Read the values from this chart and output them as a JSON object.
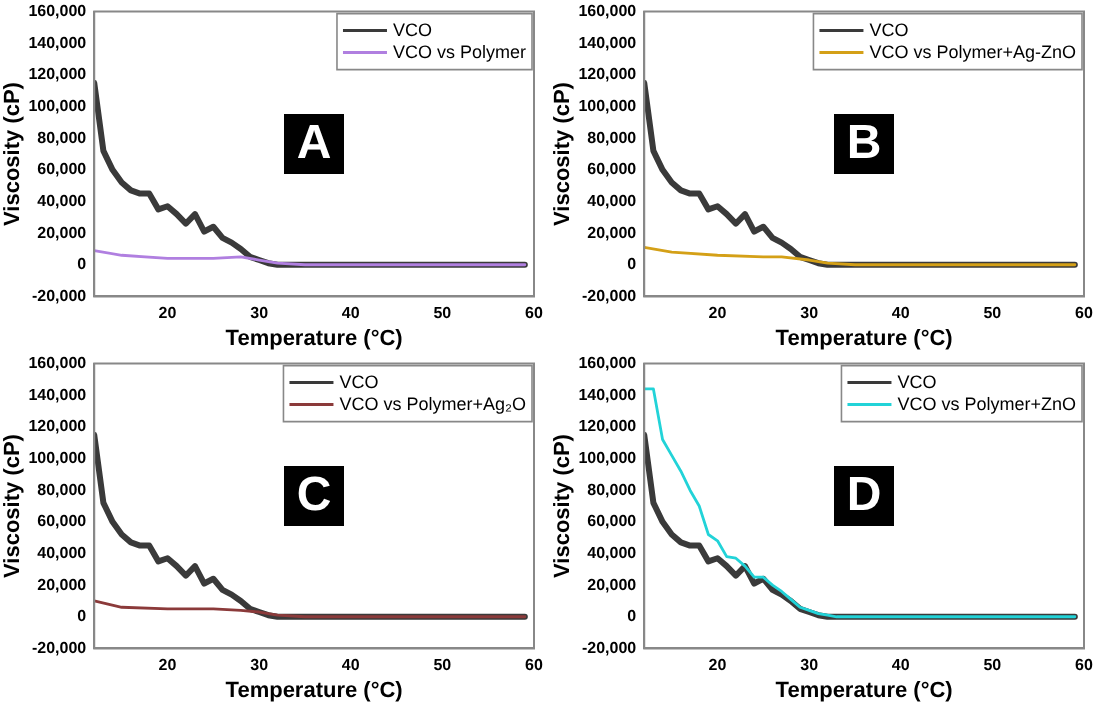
{
  "chart_data": [
    {
      "type": "line",
      "xlabel": "Temperature (°C)",
      "ylabel": "Viscosity (cP)",
      "annotations": [
        "A"
      ],
      "legend": "top right",
      "grid": false,
      "marker": "none",
      "line_style": "solid",
      "xlim": [
        12,
        60
      ],
      "xticks": [
        20,
        30,
        40,
        50,
        60
      ],
      "ylim": [
        -20000,
        160000
      ],
      "yticks": [
        {
          "value": -20000,
          "label": "-20,000"
        },
        {
          "value": 0,
          "label": "0"
        },
        {
          "value": 20000,
          "label": "20,000"
        },
        {
          "value": 40000,
          "label": "40,000"
        },
        {
          "value": 60000,
          "label": "60,000"
        },
        {
          "value": 80000,
          "label": "80,000"
        },
        {
          "value": 100000,
          "label": "100,000"
        },
        {
          "value": 120000,
          "label": "120,000"
        },
        {
          "value": 140000,
          "label": "140,000"
        },
        {
          "value": 160000,
          "label": "160,000"
        }
      ],
      "series": [
        {
          "name": "VCO",
          "color": "#3a3a3a",
          "x": [
            12,
            13,
            14,
            15,
            16,
            17,
            18,
            19,
            20,
            21,
            22,
            23,
            24,
            25,
            26,
            27,
            28,
            29,
            30,
            31,
            32,
            33,
            35,
            40,
            50,
            59
          ],
          "values": [
            115000,
            72000,
            60000,
            52000,
            47000,
            45000,
            45000,
            35000,
            37000,
            32000,
            26000,
            32000,
            21000,
            24000,
            17000,
            14000,
            10000,
            5000,
            3000,
            1000,
            0,
            0,
            0,
            0,
            0,
            0
          ]
        },
        {
          "name": "VCO vs Polymer",
          "color": "#b07fe0",
          "x": [
            12,
            15,
            20,
            25,
            28,
            30,
            32,
            35,
            40,
            50,
            59
          ],
          "values": [
            9000,
            6000,
            4000,
            4000,
            5000,
            3000,
            1000,
            0,
            0,
            0,
            0
          ]
        }
      ]
    },
    {
      "type": "line",
      "xlabel": "Temperature (°C)",
      "ylabel": "Viscosity (cP)",
      "annotations": [
        "B"
      ],
      "legend": "top right",
      "grid": false,
      "marker": "none",
      "line_style": "solid",
      "xlim": [
        12,
        60
      ],
      "xticks": [
        20,
        30,
        40,
        50,
        60
      ],
      "ylim": [
        -20000,
        160000
      ],
      "yticks": [
        {
          "value": -20000,
          "label": "-20,000"
        },
        {
          "value": 0,
          "label": "0"
        },
        {
          "value": 20000,
          "label": "20,000"
        },
        {
          "value": 40000,
          "label": "40,000"
        },
        {
          "value": 60000,
          "label": "60,000"
        },
        {
          "value": 80000,
          "label": "80,000"
        },
        {
          "value": 100000,
          "label": "100,000"
        },
        {
          "value": 120000,
          "label": "120,000"
        },
        {
          "value": 140000,
          "label": "140,000"
        },
        {
          "value": 160000,
          "label": "160,000"
        }
      ],
      "series": [
        {
          "name": "VCO",
          "color": "#3a3a3a",
          "x": [
            12,
            13,
            14,
            15,
            16,
            17,
            18,
            19,
            20,
            21,
            22,
            23,
            24,
            25,
            26,
            27,
            28,
            29,
            30,
            31,
            32,
            33,
            35,
            40,
            50,
            59
          ],
          "values": [
            115000,
            72000,
            60000,
            52000,
            47000,
            45000,
            45000,
            35000,
            37000,
            32000,
            26000,
            32000,
            21000,
            24000,
            17000,
            14000,
            10000,
            5000,
            3000,
            1000,
            0,
            0,
            0,
            0,
            0,
            0
          ]
        },
        {
          "name": "VCO vs Polymer+Ag-ZnO",
          "color": "#d4a017",
          "x": [
            12,
            15,
            20,
            25,
            27,
            30,
            32,
            35,
            40,
            50,
            59
          ],
          "values": [
            11000,
            8000,
            6000,
            5000,
            5000,
            3000,
            1000,
            0,
            0,
            0,
            0
          ]
        }
      ]
    },
    {
      "type": "line",
      "xlabel": "Temperature (°C)",
      "ylabel": "Viscosity (cP)",
      "annotations": [
        "C"
      ],
      "legend": "top right",
      "grid": false,
      "marker": "none",
      "line_style": "solid",
      "xlim": [
        12,
        60
      ],
      "xticks": [
        20,
        30,
        40,
        50,
        60
      ],
      "ylim": [
        -20000,
        160000
      ],
      "yticks": [
        {
          "value": -20000,
          "label": "-20,000"
        },
        {
          "value": 0,
          "label": "0"
        },
        {
          "value": 20000,
          "label": "20,000"
        },
        {
          "value": 40000,
          "label": "40,000"
        },
        {
          "value": 60000,
          "label": "60,000"
        },
        {
          "value": 80000,
          "label": "80,000"
        },
        {
          "value": 100000,
          "label": "100,000"
        },
        {
          "value": 120000,
          "label": "120,000"
        },
        {
          "value": 140000,
          "label": "140,000"
        },
        {
          "value": 160000,
          "label": "160,000"
        }
      ],
      "series": [
        {
          "name": "VCO",
          "color": "#3a3a3a",
          "x": [
            12,
            13,
            14,
            15,
            16,
            17,
            18,
            19,
            20,
            21,
            22,
            23,
            24,
            25,
            26,
            27,
            28,
            29,
            30,
            31,
            32,
            33,
            35,
            40,
            50,
            59
          ],
          "values": [
            115000,
            72000,
            60000,
            52000,
            47000,
            45000,
            45000,
            35000,
            37000,
            32000,
            26000,
            32000,
            21000,
            24000,
            17000,
            14000,
            10000,
            5000,
            3000,
            1000,
            0,
            0,
            0,
            0,
            0,
            0
          ]
        },
        {
          "name": "VCO vs Polymer+Ag₂O",
          "color": "#8b3a3a",
          "x": [
            12,
            15,
            20,
            25,
            28,
            30,
            32,
            35,
            40,
            50,
            59
          ],
          "values": [
            10000,
            6000,
            5000,
            5000,
            4000,
            3000,
            1000,
            0,
            0,
            0,
            0
          ]
        }
      ]
    },
    {
      "type": "line",
      "xlabel": "Temperature (°C)",
      "ylabel": "Viscosity (cP)",
      "annotations": [
        "D"
      ],
      "legend": "top right",
      "grid": false,
      "marker": "none",
      "line_style": "solid",
      "xlim": [
        12,
        60
      ],
      "xticks": [
        20,
        30,
        40,
        50,
        60
      ],
      "ylim": [
        -20000,
        160000
      ],
      "yticks": [
        {
          "value": -20000,
          "label": "-20,000"
        },
        {
          "value": 0,
          "label": "0"
        },
        {
          "value": 20000,
          "label": "20,000"
        },
        {
          "value": 40000,
          "label": "40,000"
        },
        {
          "value": 60000,
          "label": "60,000"
        },
        {
          "value": 80000,
          "label": "80,000"
        },
        {
          "value": 100000,
          "label": "100,000"
        },
        {
          "value": 120000,
          "label": "120,000"
        },
        {
          "value": 140000,
          "label": "140,000"
        },
        {
          "value": 160000,
          "label": "160,000"
        }
      ],
      "series": [
        {
          "name": "VCO",
          "color": "#3a3a3a",
          "x": [
            12,
            13,
            14,
            15,
            16,
            17,
            18,
            19,
            20,
            21,
            22,
            23,
            24,
            25,
            26,
            27,
            28,
            29,
            30,
            31,
            32,
            33,
            35,
            40,
            50,
            59
          ],
          "values": [
            115000,
            72000,
            60000,
            52000,
            47000,
            45000,
            45000,
            35000,
            37000,
            32000,
            26000,
            32000,
            21000,
            24000,
            17000,
            14000,
            10000,
            5000,
            3000,
            1000,
            0,
            0,
            0,
            0,
            0,
            0
          ]
        },
        {
          "name": "VCO vs Polymer+ZnO",
          "color": "#22d3d8",
          "x": [
            12,
            13,
            14,
            15,
            16,
            17,
            18,
            19,
            20,
            21,
            22,
            23,
            24,
            25,
            26,
            27,
            28,
            29,
            30,
            31,
            32,
            33,
            35,
            40,
            50,
            59
          ],
          "values": [
            144000,
            144000,
            112000,
            102000,
            92000,
            80000,
            70000,
            52000,
            48000,
            38000,
            37000,
            32000,
            25000,
            25000,
            20000,
            16000,
            11000,
            6000,
            4000,
            2000,
            1000,
            0,
            0,
            0,
            0,
            0
          ]
        }
      ]
    }
  ]
}
